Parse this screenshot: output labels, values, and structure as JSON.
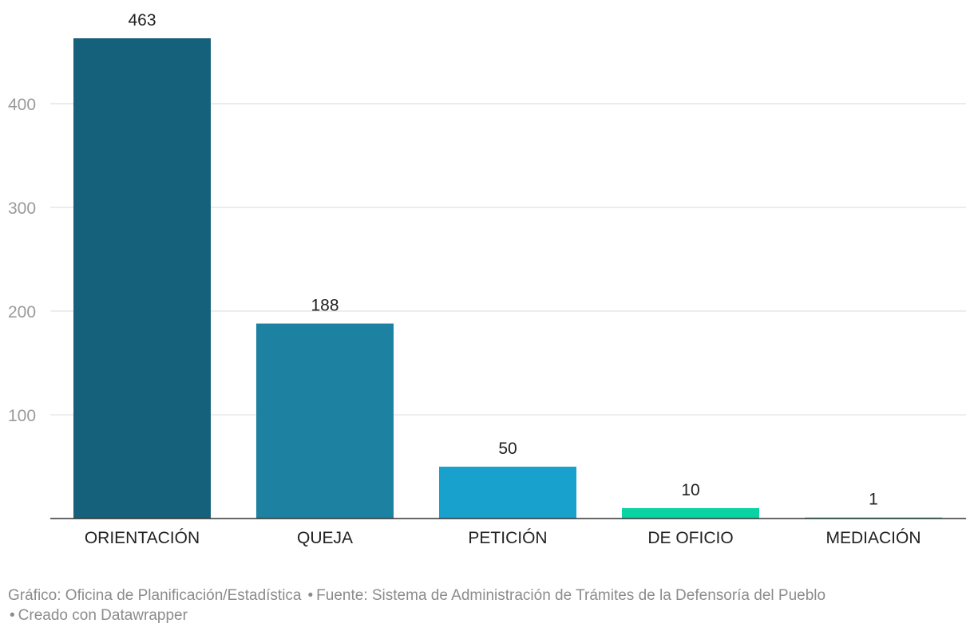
{
  "chart_data": {
    "type": "bar",
    "categories": [
      "ORIENTACIÓN",
      "QUEJA",
      "PETICIÓN",
      "DE OFICIO",
      "MEDIACIÓN"
    ],
    "values": [
      463,
      188,
      50,
      10,
      1
    ],
    "value_labels": [
      "463",
      "188",
      "50",
      "10",
      "1"
    ],
    "colors": [
      "#15607a",
      "#1d81a2",
      "#18a1cd",
      "#09d3a2",
      "#09d3a2"
    ],
    "ylim": [
      0,
      463
    ],
    "yticks": [
      100,
      200,
      300,
      400
    ],
    "ytick_labels": [
      "100",
      "200",
      "300",
      "400"
    ],
    "grid": true
  },
  "footer": {
    "credit": "Gráfico: Oficina de Planificación/Estadística",
    "source": "Fuente: Sistema de Administración de Trámites de la Defensoría del Pueblo",
    "made_with": "Creado con Datawrapper"
  }
}
